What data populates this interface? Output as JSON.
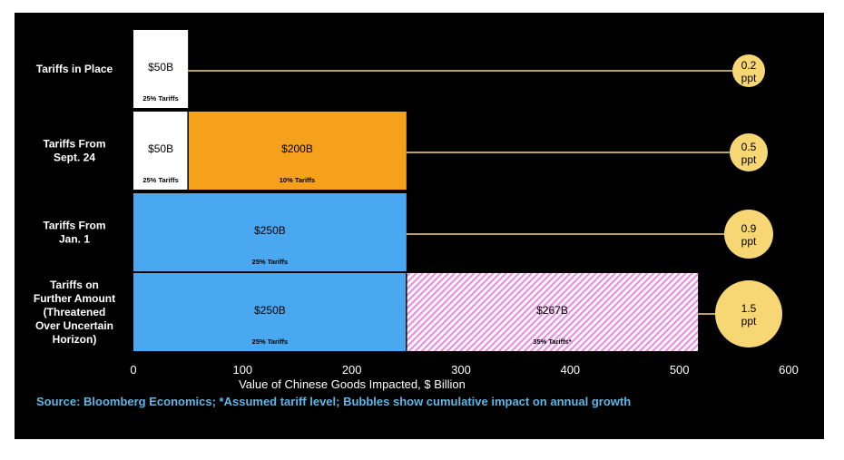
{
  "chart_data": {
    "type": "bar",
    "stacked": true,
    "orientation": "horizontal",
    "categories": [
      [
        "Tariffs in Place"
      ],
      [
        "Tariffs From",
        "Sept. 24"
      ],
      [
        "Tariffs From",
        "Jan. 1"
      ],
      [
        "Tariffs on",
        "Further Amount",
        "(Threatened",
        "Over Uncertain",
        "Horizon)"
      ]
    ],
    "rows": [
      {
        "segments": [
          {
            "value": 50,
            "label": "$50B",
            "sublabel": "25% Tariffs",
            "color": "#ffffff",
            "text_color": "#000000"
          }
        ],
        "bubble": {
          "value": "0.2",
          "unit": "ppt"
        }
      },
      {
        "segments": [
          {
            "value": 50,
            "label": "$50B",
            "sublabel": "25% Tariffs",
            "color": "#ffffff",
            "text_color": "#000000"
          },
          {
            "value": 200,
            "label": "$200B",
            "sublabel": "10% Tariffs",
            "color": "#f5a11c",
            "text_color": "#000000"
          }
        ],
        "bubble": {
          "value": "0.5",
          "unit": "ppt"
        }
      },
      {
        "segments": [
          {
            "value": 250,
            "label": "$250B",
            "sublabel": "25% Tariffs",
            "color": "#4aa8f0",
            "text_color": "#000000"
          }
        ],
        "bubble": {
          "value": "0.9",
          "unit": "ppt"
        }
      },
      {
        "segments": [
          {
            "value": 250,
            "label": "$250B",
            "sublabel": "25% Tariffs",
            "color": "#4aa8f0",
            "text_color": "#000000"
          },
          {
            "value": 267,
            "label": "$267B",
            "sublabel": "35% Tariffs*",
            "color": "#e98de0",
            "text_color": "#000000",
            "pattern": "hatch"
          }
        ],
        "bubble": {
          "value": "1.5",
          "unit": "ppt"
        }
      }
    ],
    "xlim": [
      0,
      600
    ],
    "xticks": [
      0,
      100,
      200,
      300,
      400,
      500,
      600
    ],
    "xlabel": "Value of Chinese Goods Impacted, $ Billion",
    "source": "Source: Bloomberg Economics; *Assumed tariff level; Bubbles show cumulative impact on annual growth",
    "colors": {
      "background": "#000000",
      "bubble": "#f7d774",
      "leader": "#f7d774",
      "source_text": "#5fb7e6"
    },
    "grid": false,
    "legend": "none"
  }
}
